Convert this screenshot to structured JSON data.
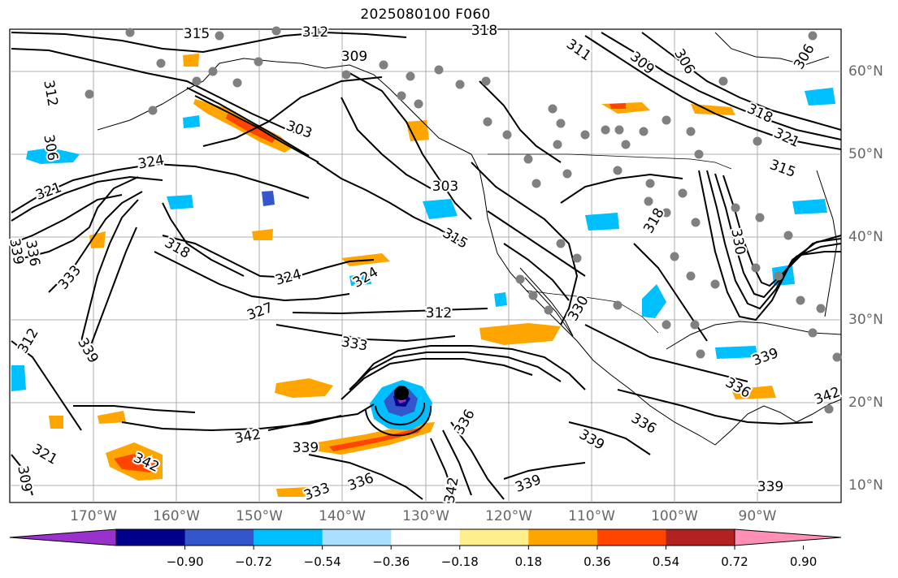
{
  "title": "2025080100 F060",
  "map": {
    "lon_labels": [
      "170°W",
      "160°W",
      "150°W",
      "140°W",
      "130°W",
      "120°W",
      "110°W",
      "100°W",
      "90°W"
    ],
    "lat_labels": [
      "60°N",
      "50°N",
      "40°N",
      "30°N",
      "20°N",
      "10°N"
    ],
    "contour_color": "#000000",
    "contour_labels": [
      "315",
      "312",
      "318",
      "309",
      "312",
      "311",
      "309",
      "306",
      "306",
      "303",
      "318",
      "321",
      "324",
      "321",
      "306",
      "303",
      "324",
      "339",
      "336",
      "318",
      "315",
      "324",
      "333",
      "327",
      "318",
      "315",
      "330",
      "312",
      "330",
      "333",
      "339",
      "342",
      "339",
      "342",
      "333",
      "336",
      "342",
      "336",
      "339",
      "339",
      "336",
      "339",
      "336",
      "342",
      "339",
      "312",
      "309",
      "321"
    ]
  },
  "colorbar": {
    "ticks": [
      "−0.90",
      "−0.72",
      "−0.54",
      "−0.36",
      "−0.18",
      "0.18",
      "0.36",
      "0.54",
      "0.72",
      "0.90"
    ],
    "colors": [
      "#9932CC",
      "#00008B",
      "#3456CC",
      "#00BFFF",
      "#AADFFF",
      "#FFFFFF",
      "#FFEE8C",
      "#FFA500",
      "#FF4500",
      "#B22222",
      "#FF8FB4"
    ]
  }
}
